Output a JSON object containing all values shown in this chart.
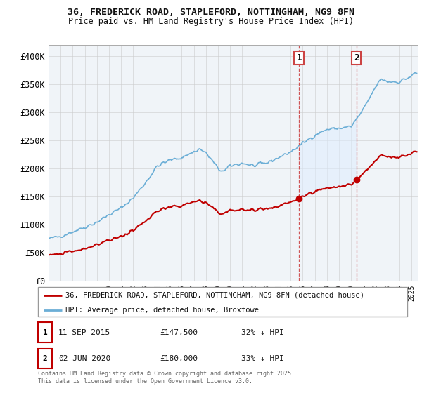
{
  "title_line1": "36, FREDERICK ROAD, STAPLEFORD, NOTTINGHAM, NG9 8FN",
  "title_line2": "Price paid vs. HM Land Registry's House Price Index (HPI)",
  "ylim": [
    0,
    420000
  ],
  "yticks": [
    0,
    50000,
    100000,
    150000,
    200000,
    250000,
    300000,
    350000,
    400000
  ],
  "ytick_labels": [
    "£0",
    "£50K",
    "£100K",
    "£150K",
    "£200K",
    "£250K",
    "£300K",
    "£350K",
    "£400K"
  ],
  "xlim_start": 1995.0,
  "xlim_end": 2025.5,
  "sale1_date": 2015.69,
  "sale1_price": 147500,
  "sale1_label": "11-SEP-2015",
  "sale1_amount": "£147,500",
  "sale1_pct": "32% ↓ HPI",
  "sale2_date": 2020.42,
  "sale2_price": 180000,
  "sale2_label": "02-JUN-2020",
  "sale2_amount": "£180,000",
  "sale2_pct": "33% ↓ HPI",
  "hpi_color": "#6baed6",
  "sale_color": "#c00000",
  "bg_color": "#ffffff",
  "plot_bg_color": "#f0f4f8",
  "shade_color": "#ddeeff",
  "legend_label_red": "36, FREDERICK ROAD, STAPLEFORD, NOTTINGHAM, NG9 8FN (detached house)",
  "legend_label_blue": "HPI: Average price, detached house, Broxtowe",
  "footer": "Contains HM Land Registry data © Crown copyright and database right 2025.\nThis data is licensed under the Open Government Licence v3.0."
}
